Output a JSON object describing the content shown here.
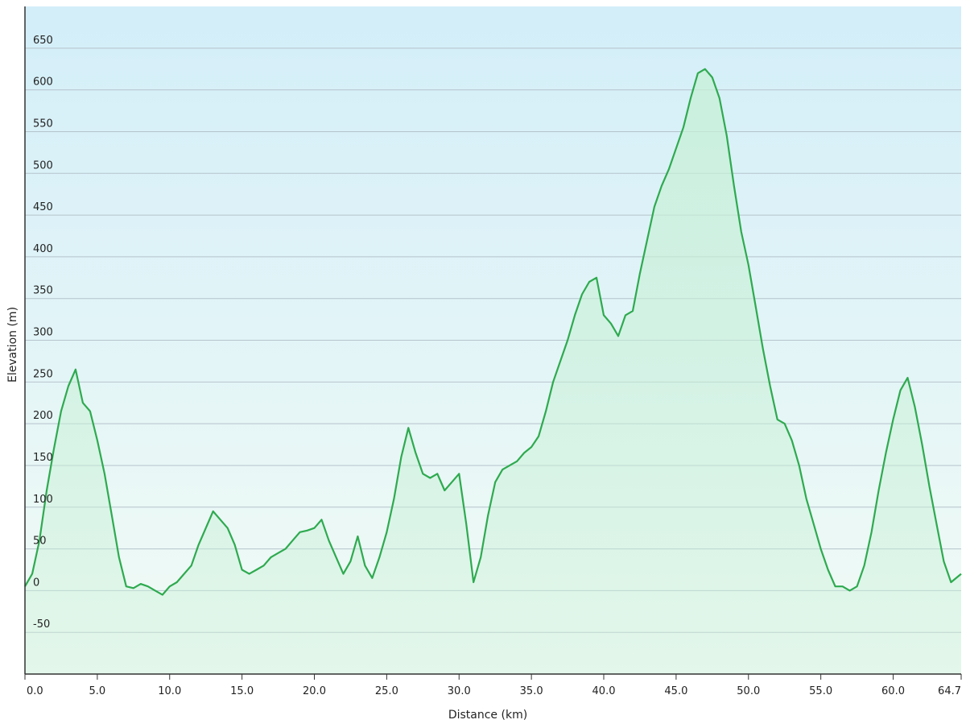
{
  "chart_data": {
    "type": "area",
    "title": "",
    "xlabel": "Distance  (km)",
    "ylabel": "Elevation (m)",
    "x_ticks": [
      "0.0",
      "5.0",
      "10.0",
      "15.0",
      "20.0",
      "25.0",
      "30.0",
      "35.0",
      "40.0",
      "45.0",
      "50.0",
      "55.0",
      "60.0",
      "64.7"
    ],
    "y_ticks": [
      "650",
      "600",
      "550",
      "500",
      "450",
      "400",
      "350",
      "300",
      "250",
      "200",
      "150",
      "100",
      "50",
      "0",
      "-50"
    ],
    "xlim": [
      0,
      64.7
    ],
    "ylim": [
      -100,
      700
    ],
    "grid": true,
    "legend": "none",
    "colors": {
      "line": "#2eaa4f",
      "fill": "#c7f0d6",
      "bg_top": "#d3eef9",
      "bg_bottom": "#f2fbf5",
      "grid": "#b6c3cc",
      "axis": "#333333"
    },
    "series": [
      {
        "name": "",
        "points": [
          [
            0,
            5
          ],
          [
            0.5,
            20
          ],
          [
            1,
            60
          ],
          [
            1.5,
            120
          ],
          [
            2,
            170
          ],
          [
            2.5,
            215
          ],
          [
            3,
            245
          ],
          [
            3.5,
            265
          ],
          [
            4,
            225
          ],
          [
            4.5,
            215
          ],
          [
            5,
            180
          ],
          [
            5.5,
            140
          ],
          [
            6,
            90
          ],
          [
            6.5,
            40
          ],
          [
            7,
            5
          ],
          [
            7.5,
            3
          ],
          [
            8,
            8
          ],
          [
            8.5,
            5
          ],
          [
            9,
            0
          ],
          [
            9.5,
            -5
          ],
          [
            10,
            5
          ],
          [
            10.5,
            10
          ],
          [
            11,
            20
          ],
          [
            11.5,
            30
          ],
          [
            12,
            55
          ],
          [
            12.5,
            75
          ],
          [
            13,
            95
          ],
          [
            13.5,
            85
          ],
          [
            14,
            75
          ],
          [
            14.5,
            55
          ],
          [
            15,
            25
          ],
          [
            15.5,
            20
          ],
          [
            16,
            25
          ],
          [
            16.5,
            30
          ],
          [
            17,
            40
          ],
          [
            17.5,
            45
          ],
          [
            18,
            50
          ],
          [
            18.5,
            60
          ],
          [
            19,
            70
          ],
          [
            19.5,
            72
          ],
          [
            20,
            75
          ],
          [
            20.5,
            85
          ],
          [
            21,
            60
          ],
          [
            21.5,
            40
          ],
          [
            22,
            20
          ],
          [
            22.5,
            35
          ],
          [
            23,
            65
          ],
          [
            23.5,
            30
          ],
          [
            24,
            15
          ],
          [
            24.5,
            40
          ],
          [
            25,
            70
          ],
          [
            25.5,
            110
          ],
          [
            26,
            160
          ],
          [
            26.5,
            195
          ],
          [
            27,
            165
          ],
          [
            27.5,
            140
          ],
          [
            28,
            135
          ],
          [
            28.5,
            140
          ],
          [
            29,
            120
          ],
          [
            29.5,
            130
          ],
          [
            30,
            140
          ],
          [
            30.5,
            80
          ],
          [
            31,
            10
          ],
          [
            31.5,
            40
          ],
          [
            32,
            90
          ],
          [
            32.5,
            130
          ],
          [
            33,
            145
          ],
          [
            33.5,
            150
          ],
          [
            34,
            155
          ],
          [
            34.5,
            165
          ],
          [
            35,
            172
          ],
          [
            35.5,
            185
          ],
          [
            36,
            215
          ],
          [
            36.5,
            250
          ],
          [
            37,
            275
          ],
          [
            37.5,
            300
          ],
          [
            38,
            330
          ],
          [
            38.5,
            355
          ],
          [
            39,
            370
          ],
          [
            39.5,
            375
          ],
          [
            40,
            330
          ],
          [
            40.5,
            320
          ],
          [
            41,
            305
          ],
          [
            41.5,
            330
          ],
          [
            42,
            335
          ],
          [
            42.5,
            380
          ],
          [
            43,
            420
          ],
          [
            43.5,
            460
          ],
          [
            44,
            485
          ],
          [
            44.5,
            505
          ],
          [
            45,
            530
          ],
          [
            45.5,
            555
          ],
          [
            46,
            590
          ],
          [
            46.5,
            620
          ],
          [
            47,
            625
          ],
          [
            47.5,
            615
          ],
          [
            48,
            590
          ],
          [
            48.5,
            545
          ],
          [
            49,
            485
          ],
          [
            49.5,
            430
          ],
          [
            50,
            390
          ],
          [
            50.5,
            340
          ],
          [
            51,
            290
          ],
          [
            51.5,
            245
          ],
          [
            52,
            205
          ],
          [
            52.5,
            200
          ],
          [
            53,
            180
          ],
          [
            53.5,
            150
          ],
          [
            54,
            110
          ],
          [
            54.5,
            80
          ],
          [
            55,
            50
          ],
          [
            55.5,
            25
          ],
          [
            56,
            5
          ],
          [
            56.5,
            5
          ],
          [
            57,
            0
          ],
          [
            57.5,
            5
          ],
          [
            58,
            30
          ],
          [
            58.5,
            70
          ],
          [
            59,
            120
          ],
          [
            59.5,
            165
          ],
          [
            60,
            205
          ],
          [
            60.5,
            240
          ],
          [
            61,
            255
          ],
          [
            61.5,
            220
          ],
          [
            62,
            175
          ],
          [
            62.5,
            125
          ],
          [
            63,
            80
          ],
          [
            63.5,
            35
          ],
          [
            64,
            10
          ],
          [
            64.7,
            20
          ]
        ]
      }
    ]
  }
}
